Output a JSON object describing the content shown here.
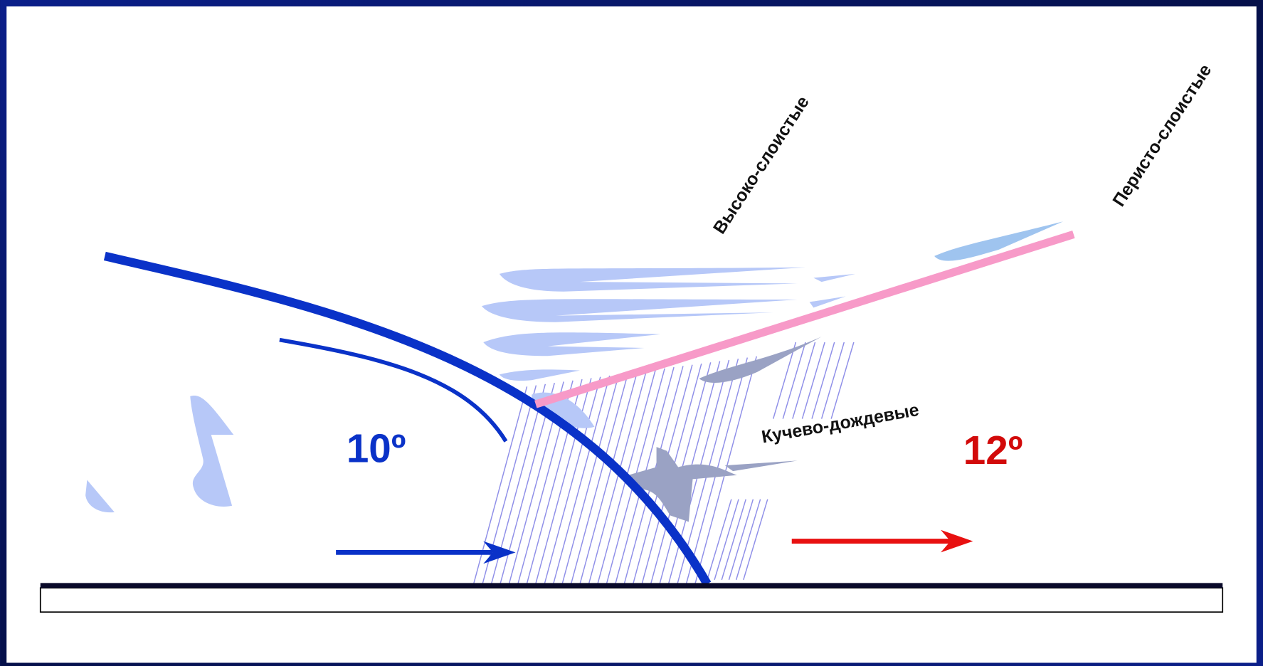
{
  "labels": {
    "altostratus": "Высоко-слоистые",
    "cirrostratus": "Перисто-слоистые",
    "cumulonimbus": "Кучево-дождевые"
  },
  "temperatures": {
    "cold": "10º",
    "warm": "12º"
  }
}
